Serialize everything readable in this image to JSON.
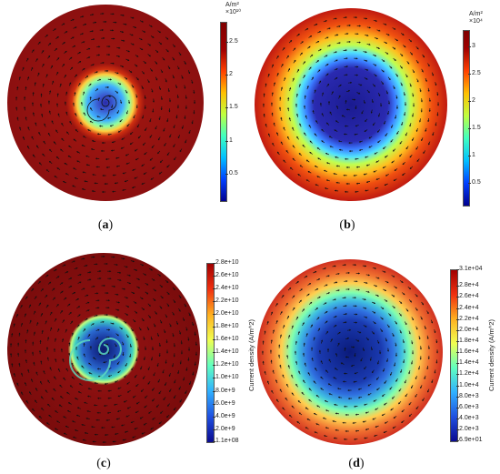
{
  "panels": [
    {
      "id": "a",
      "caption_letter": "a",
      "colorbar": {
        "unit": "A/m²",
        "exponent": "×10¹⁰",
        "ticks": [
          {
            "label": "2.5",
            "value": 2.5
          },
          {
            "label": "2",
            "value": 2.0
          },
          {
            "label": "1.5",
            "value": 1.5
          },
          {
            "label": "1",
            "value": 1.0
          },
          {
            "label": "0.5",
            "value": 0.5
          }
        ],
        "range": [
          0.1,
          2.8
        ],
        "colormap": "jet"
      }
    },
    {
      "id": "b",
      "caption_letter": "b",
      "colorbar": {
        "unit": "A/m²",
        "exponent": "×10⁴",
        "ticks": [
          {
            "label": "3",
            "value": 3.0
          },
          {
            "label": "2.5",
            "value": 2.5
          },
          {
            "label": "2",
            "value": 2.0
          },
          {
            "label": "1.5",
            "value": 1.5
          },
          {
            "label": "1",
            "value": 1.0
          },
          {
            "label": "0.5",
            "value": 0.5
          }
        ],
        "range": [
          0.1,
          3.3
        ],
        "colormap": "jet"
      }
    },
    {
      "id": "c",
      "caption_letter": "c",
      "colorbar": {
        "title": "Current density  (A/m^2)",
        "ticks": [
          {
            "label": "2.8e+10",
            "value": 28000000000.0
          },
          {
            "label": "2.6e+10",
            "value": 26000000000.0
          },
          {
            "label": "2.4e+10",
            "value": 24000000000.0
          },
          {
            "label": "2.2e+10",
            "value": 22000000000.0
          },
          {
            "label": "2.0e+10",
            "value": 20000000000.0
          },
          {
            "label": "1.8e+10",
            "value": 18000000000.0
          },
          {
            "label": "1.6e+10",
            "value": 16000000000.0
          },
          {
            "label": "1.4e+10",
            "value": 14000000000.0
          },
          {
            "label": "1.2e+10",
            "value": 12000000000.0
          },
          {
            "label": "1.0e+10",
            "value": 10000000000.0
          },
          {
            "label": "8.0e+9",
            "value": 8000000000.0
          },
          {
            "label": "6.0e+9",
            "value": 6000000000.0
          },
          {
            "label": "4.0e+9",
            "value": 4000000000.0
          },
          {
            "label": "2.0e+9",
            "value": 2000000000.0
          },
          {
            "label": "1.1e+08",
            "value": 110000000.0
          }
        ],
        "range": [
          110000000.0,
          28000000000.0
        ],
        "colormap": "paraview"
      }
    },
    {
      "id": "d",
      "caption_letter": "d",
      "colorbar": {
        "title": "Current density  (A/m^2)",
        "ticks": [
          {
            "label": "3.1e+04",
            "value": 31000.0
          },
          {
            "label": "2.8e+4",
            "value": 28000.0
          },
          {
            "label": "2.6e+4",
            "value": 26000.0
          },
          {
            "label": "2.4e+4",
            "value": 24000.0
          },
          {
            "label": "2.2e+4",
            "value": 22000.0
          },
          {
            "label": "2.0e+4",
            "value": 20000.0
          },
          {
            "label": "1.8e+4",
            "value": 18000.0
          },
          {
            "label": "1.6e+4",
            "value": 16000.0
          },
          {
            "label": "1.4e+4",
            "value": 14000.0
          },
          {
            "label": "1.2e+4",
            "value": 12000.0
          },
          {
            "label": "1.0e+4",
            "value": 10000.0
          },
          {
            "label": "8.0e+3",
            "value": 8000.0
          },
          {
            "label": "6.0e+3",
            "value": 6000.0
          },
          {
            "label": "4.0e+3",
            "value": 4000.0
          },
          {
            "label": "2.0e+3",
            "value": 2000.0
          },
          {
            "label": "6.9e+01",
            "value": 69
          }
        ],
        "range": [
          69,
          31000.0
        ],
        "colormap": "paraview"
      }
    }
  ]
}
